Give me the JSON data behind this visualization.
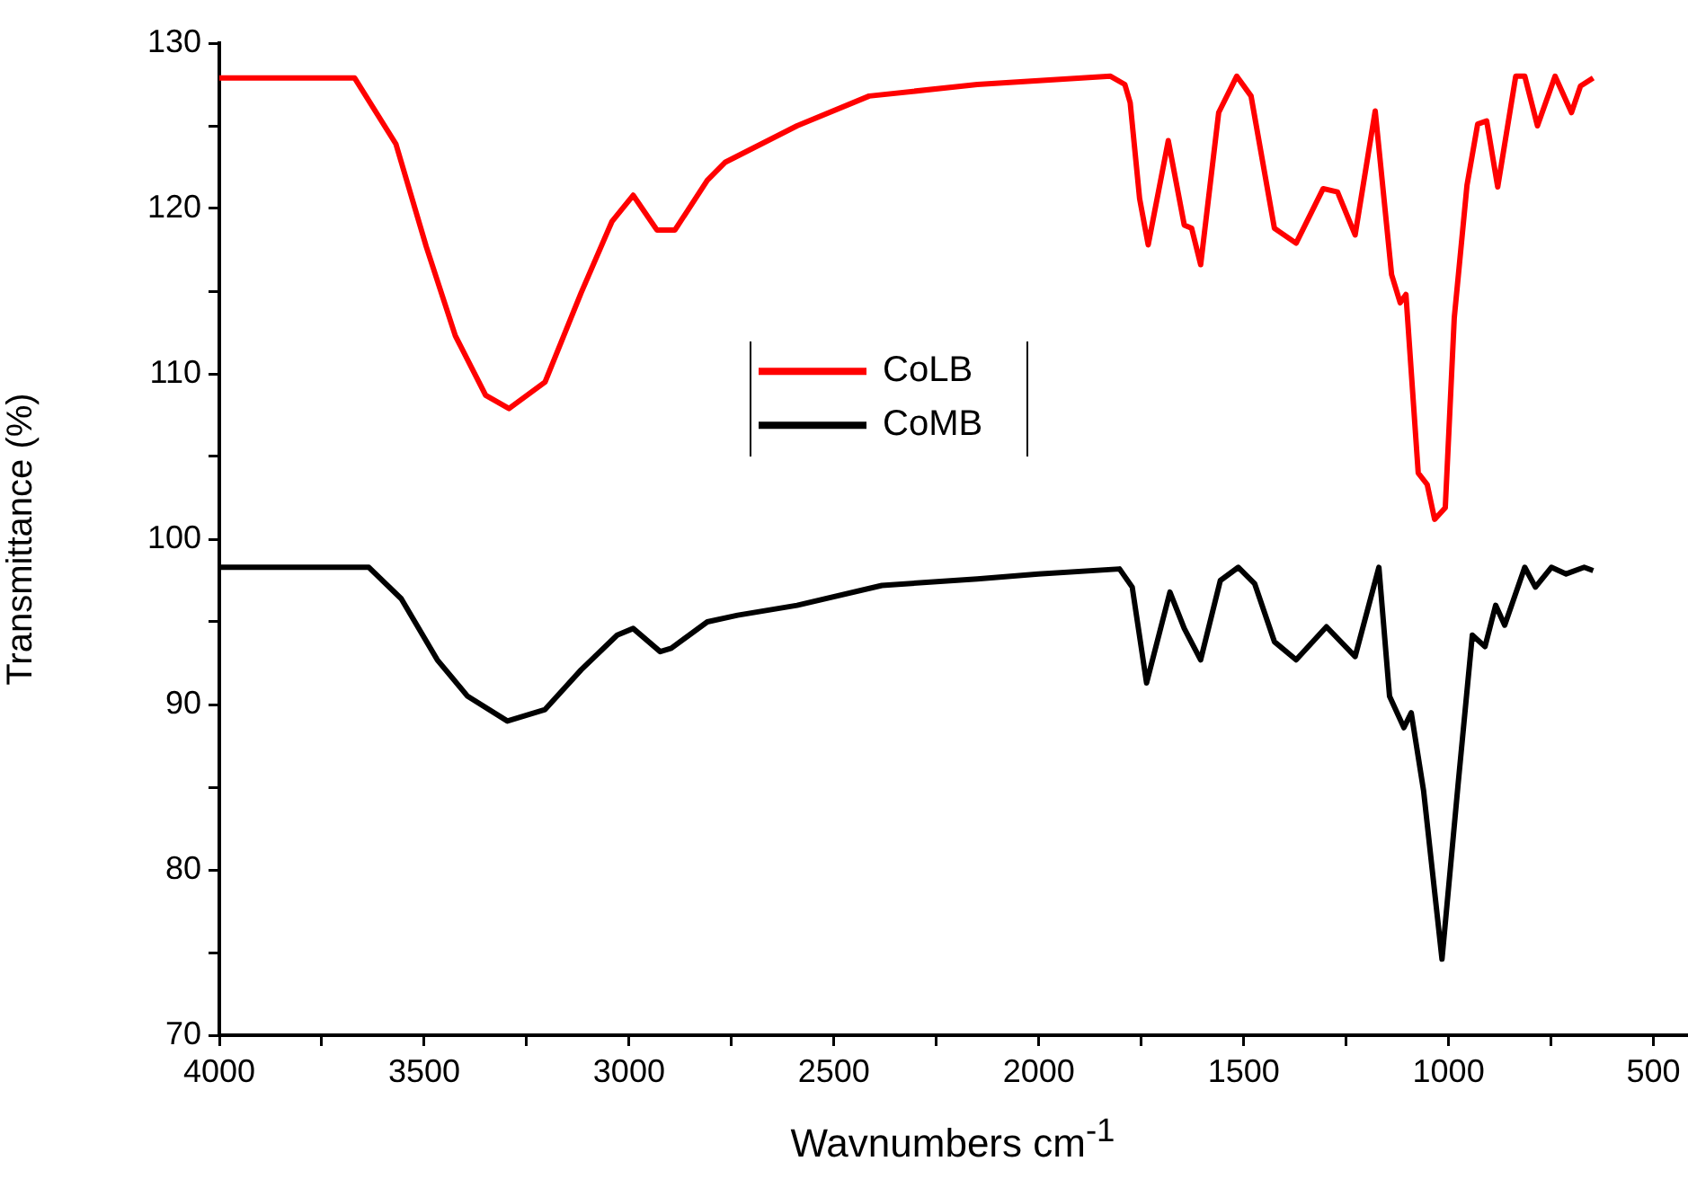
{
  "chart_data": {
    "type": "line",
    "xlabel": "Wavnumbers cm$^{-1}$",
    "ylabel": "Transmittance (%)",
    "xlim": [
      4000,
      420
    ],
    "ylim": [
      70,
      130
    ],
    "xticks": [
      4000,
      {
        "value": 3750,
        "label": null
      },
      3500,
      {
        "value": 3250,
        "label": null
      },
      3000,
      {
        "value": 2750,
        "label": null
      },
      2500,
      {
        "value": 2250,
        "label": null
      },
      2000,
      {
        "value": 1750,
        "label": null
      },
      1500,
      {
        "value": 1250,
        "label": null
      },
      1000,
      {
        "value": 750,
        "label": null
      },
      500
    ],
    "yticks": [
      70,
      {
        "value": 75,
        "label": null
      },
      80,
      {
        "value": 85,
        "label": null
      },
      90,
      {
        "value": 95,
        "label": null
      },
      100,
      {
        "value": 105,
        "label": null
      },
      110,
      {
        "value": 115,
        "label": null
      },
      120,
      {
        "value": 125,
        "label": null
      },
      130
    ],
    "grid": false,
    "legend": "center",
    "marker": "none",
    "line_style": "solid",
    "series": [
      {
        "name": "CoLB",
        "color": "#ff0000",
        "x": [
          4000,
          3670,
          3569,
          3495,
          3424,
          3350,
          3293,
          3205,
          3117,
          3042,
          2990,
          2932,
          2888,
          2809,
          2765,
          2590,
          2414,
          2150,
          1825,
          1790,
          1777,
          1754,
          1733,
          1684,
          1645,
          1627,
          1605,
          1561,
          1517,
          1482,
          1425,
          1372,
          1306,
          1271,
          1228,
          1179,
          1139,
          1118,
          1104,
          1074,
          1052,
          1034,
          1008,
          986,
          955,
          929,
          907,
          880,
          836,
          814,
          783,
          740,
          700,
          678,
          647
        ],
        "values": [
          127.9,
          127.9,
          123.9,
          117.7,
          112.3,
          108.7,
          107.9,
          109.5,
          114.9,
          119.2,
          120.8,
          118.7,
          118.7,
          121.7,
          122.8,
          125,
          126.8,
          127.5,
          128,
          127.5,
          126.4,
          120.6,
          117.8,
          124.1,
          119,
          118.8,
          116.6,
          125.8,
          128,
          126.8,
          118.8,
          117.9,
          121.2,
          121,
          118.4,
          125.9,
          116,
          114.3,
          114.8,
          104,
          103.3,
          101.2,
          101.9,
          113.4,
          121.4,
          125.1,
          125.3,
          121.3,
          128,
          128,
          125,
          128,
          125.8,
          127.4,
          127.9
        ]
      },
      {
        "name": "CoMB",
        "color": "#000000",
        "x": [
          4000,
          3635,
          3556,
          3468,
          3394,
          3297,
          3205,
          3117,
          3029,
          2990,
          2924,
          2897,
          2809,
          2735,
          2590,
          2383,
          2150,
          2001,
          1803,
          1772,
          1737,
          1680,
          1645,
          1605,
          1557,
          1513,
          1473,
          1425,
          1372,
          1298,
          1228,
          1170,
          1144,
          1109,
          1091,
          1061,
          1016,
          977,
          942,
          911,
          885,
          863,
          814,
          788,
          749,
          713,
          669,
          647
        ],
        "values": [
          98.3,
          98.3,
          96.4,
          92.7,
          90.5,
          89,
          89.7,
          92.1,
          94.2,
          94.6,
          93.2,
          93.4,
          95,
          95.4,
          96,
          97.2,
          97.6,
          97.9,
          98.2,
          97.1,
          91.3,
          96.8,
          94.6,
          92.7,
          97.5,
          98.3,
          97.3,
          93.8,
          92.7,
          94.7,
          92.9,
          98.3,
          90.5,
          88.6,
          89.5,
          84.8,
          74.6,
          85.1,
          94.2,
          93.5,
          96,
          94.8,
          98.3,
          97.1,
          98.3,
          97.9,
          98.3,
          98.1
        ]
      }
    ]
  }
}
